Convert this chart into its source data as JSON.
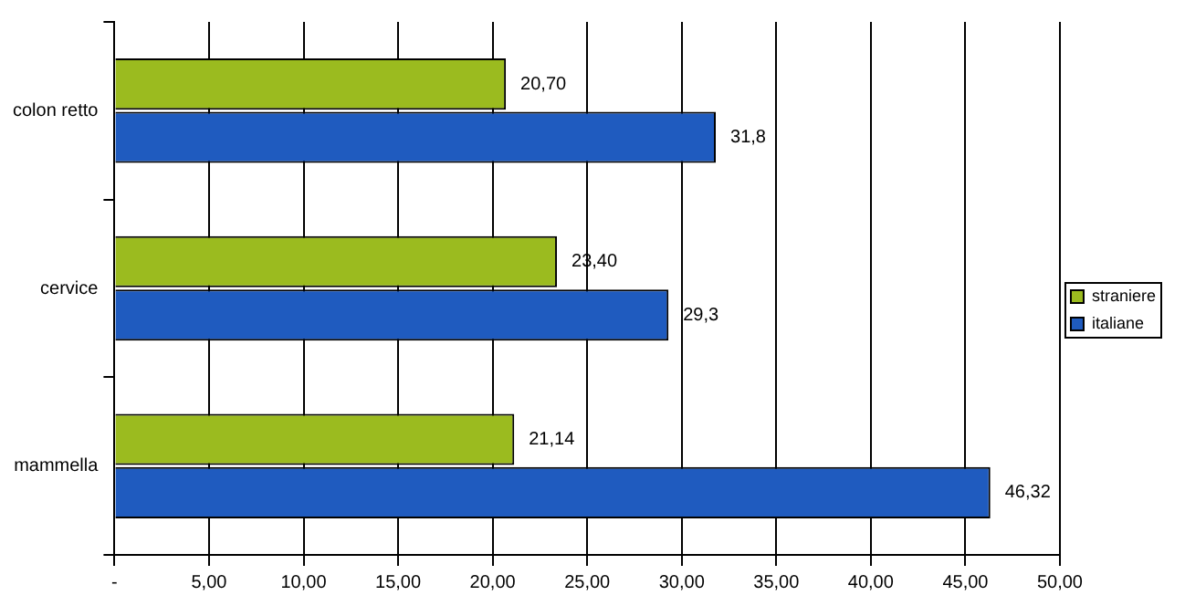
{
  "chart_data": {
    "type": "bar",
    "orientation": "horizontal",
    "categories": [
      "colon retto",
      "cervice",
      "mammella"
    ],
    "series": [
      {
        "name": "straniere",
        "color": "#9bbb1f",
        "values": [
          20.7,
          23.4,
          21.14
        ],
        "value_labels": [
          "20,70",
          "23,40",
          "21,14"
        ]
      },
      {
        "name": "italiane",
        "color": "#1f5bbf",
        "values": [
          31.8,
          29.3,
          46.32
        ],
        "value_labels": [
          "31,8",
          "29,3",
          "46,32"
        ]
      }
    ],
    "xlim": [
      0,
      50
    ],
    "xticks": [
      {
        "value": 0,
        "label": "-"
      },
      {
        "value": 5,
        "label": "5,00"
      },
      {
        "value": 10,
        "label": "10,00"
      },
      {
        "value": 15,
        "label": "15,00"
      },
      {
        "value": 20,
        "label": "20,00"
      },
      {
        "value": 25,
        "label": "25,00"
      },
      {
        "value": 30,
        "label": "30,00"
      },
      {
        "value": 35,
        "label": "35,00"
      },
      {
        "value": 40,
        "label": "40,00"
      },
      {
        "value": 45,
        "label": "45,00"
      },
      {
        "value": 50,
        "label": "50,00"
      }
    ],
    "grid": "x",
    "legend": "right"
  }
}
